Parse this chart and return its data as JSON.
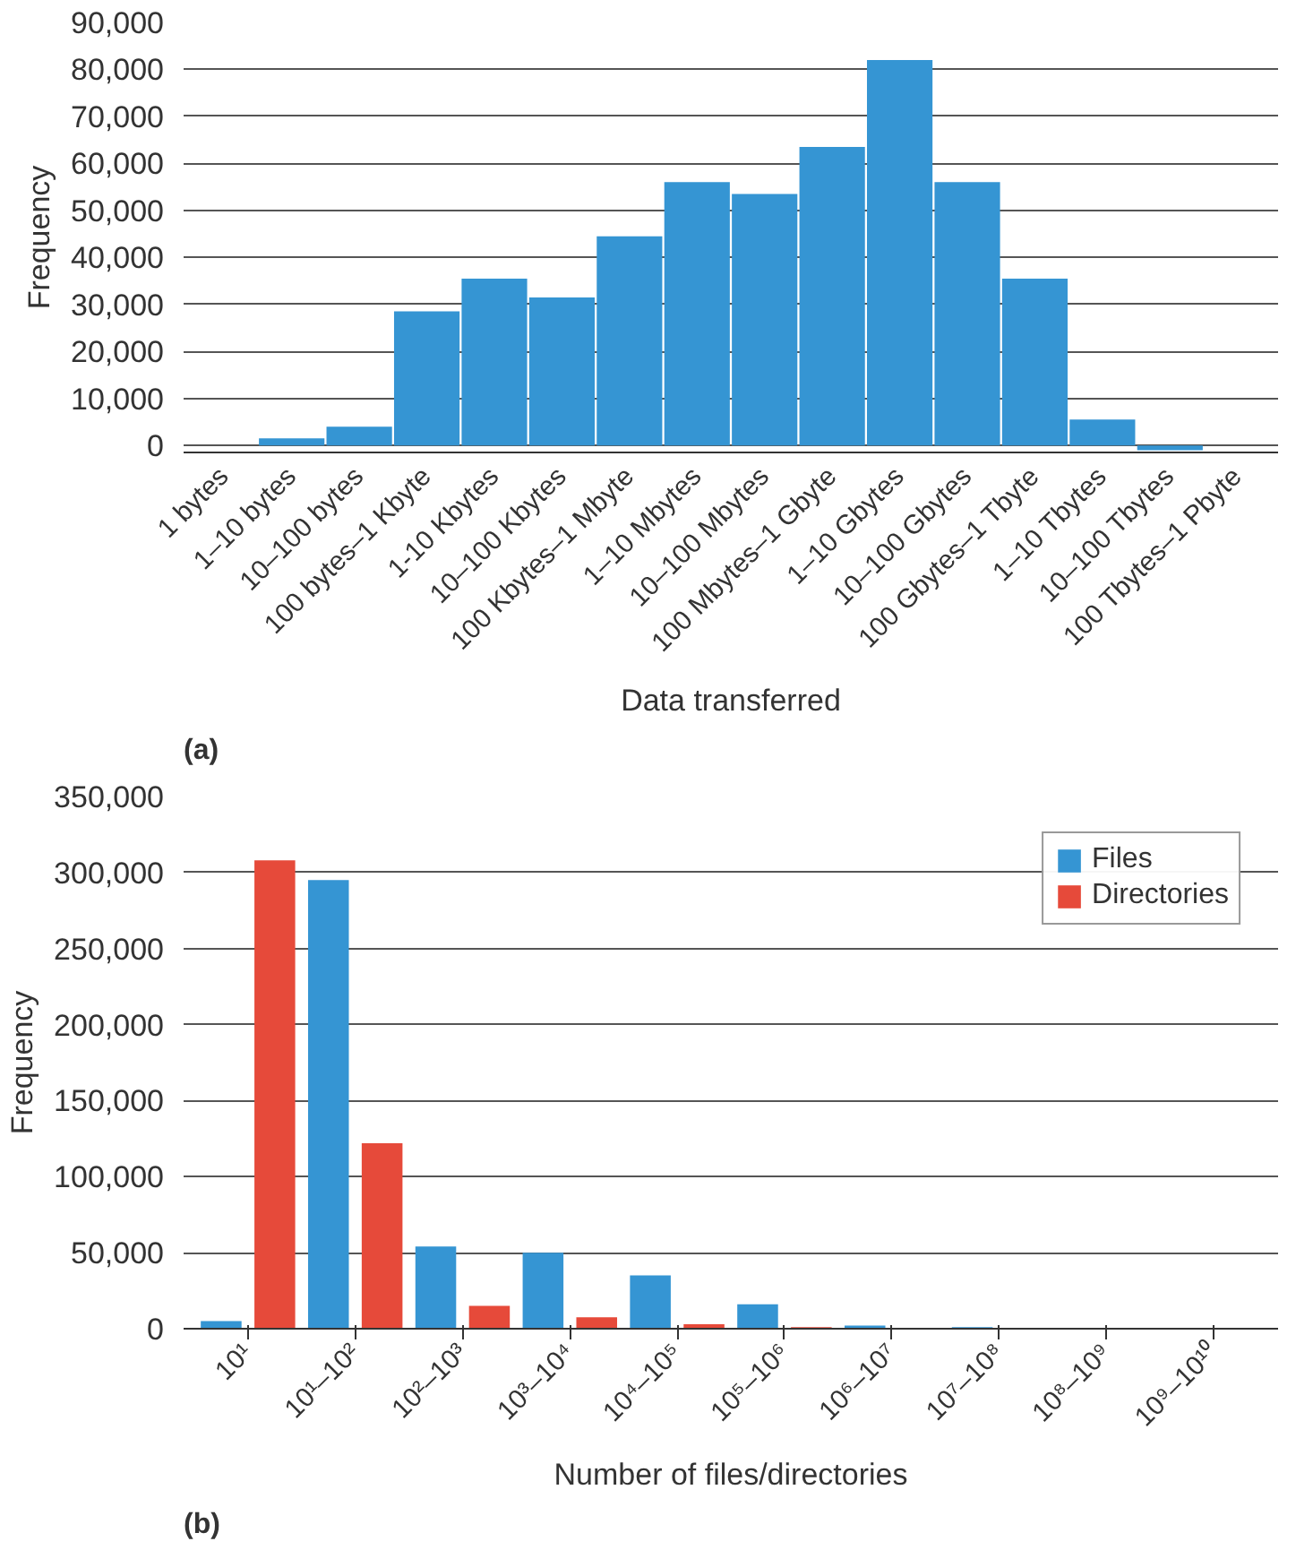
{
  "chart_data": [
    {
      "type": "bar",
      "xlabel": "Data transferred",
      "ylabel": "Frequency",
      "annotations": [
        "(a)"
      ],
      "categories": [
        "1 bytes",
        "1–10 bytes",
        "10–100 bytes",
        "100 bytes–1 Kbyte",
        "1-10 Kbytes",
        "10–100 Kbytes",
        "100 Kbytes–1 Mbyte",
        "1–10 Mbytes",
        "10–100 Mbytes",
        "100 Mbytes–1 Gbyte",
        "1–10 Gbytes",
        "10–100 Gbytes",
        "100 Gbytes–1 Tbyte",
        "1–10 Tbytes",
        "10–100 Tbytes",
        "100 Tbytes–1 Pbyte"
      ],
      "series": [
        {
          "color": "#3595d3",
          "values": [
            0,
            1500,
            4000,
            28500,
            35500,
            31500,
            44500,
            56000,
            53500,
            63500,
            82000,
            56000,
            35500,
            5500,
            -1000,
            0
          ]
        }
      ],
      "ylim": [
        -1500,
        90000
      ],
      "yticks": [
        {
          "value": 0,
          "label": "0"
        },
        {
          "value": 10000,
          "label": "10,000"
        },
        {
          "value": 20000,
          "label": "20,000"
        },
        {
          "value": 30000,
          "label": "30,000"
        },
        {
          "value": 40000,
          "label": "40,000"
        },
        {
          "value": 50000,
          "label": "50,000"
        },
        {
          "value": 60000,
          "label": "60,000"
        },
        {
          "value": 70000,
          "label": "70,000"
        },
        {
          "value": 80000,
          "label": "80,000"
        },
        {
          "value": 90000,
          "label": "90,000"
        }
      ],
      "grid": "y",
      "legend": false
    },
    {
      "type": "bar",
      "xlabel": "Number of files/directories",
      "ylabel": "Frequency",
      "annotations": [
        "(b)"
      ],
      "categories": [
        "10¹",
        "10¹–10²",
        "10²–10³",
        "10³–10⁴",
        "10⁴–10⁵",
        "10⁵–10⁶",
        "10⁶–10⁷",
        "10⁷–10⁸",
        "10⁸–10⁹",
        "10⁹–10¹⁰"
      ],
      "series": [
        {
          "name": "Files",
          "color": "#3595d3",
          "values": [
            5000,
            295000,
            54000,
            50000,
            35000,
            16000,
            2000,
            1000,
            0,
            0
          ]
        },
        {
          "name": "Directories",
          "color": "#e64a3a",
          "values": [
            308000,
            122000,
            15000,
            7500,
            3000,
            1000,
            0,
            0,
            0,
            0
          ]
        }
      ],
      "ylim": [
        0,
        350000
      ],
      "yticks": [
        {
          "value": 0,
          "label": "0"
        },
        {
          "value": 50000,
          "label": "50,000"
        },
        {
          "value": 100000,
          "label": "100,000"
        },
        {
          "value": 150000,
          "label": "150,000"
        },
        {
          "value": 200000,
          "label": "200,000"
        },
        {
          "value": 250000,
          "label": "250,000"
        },
        {
          "value": 300000,
          "label": "300,000"
        },
        {
          "value": 350000,
          "label": "350,000"
        }
      ],
      "grid": "y",
      "legend": "top right"
    }
  ]
}
